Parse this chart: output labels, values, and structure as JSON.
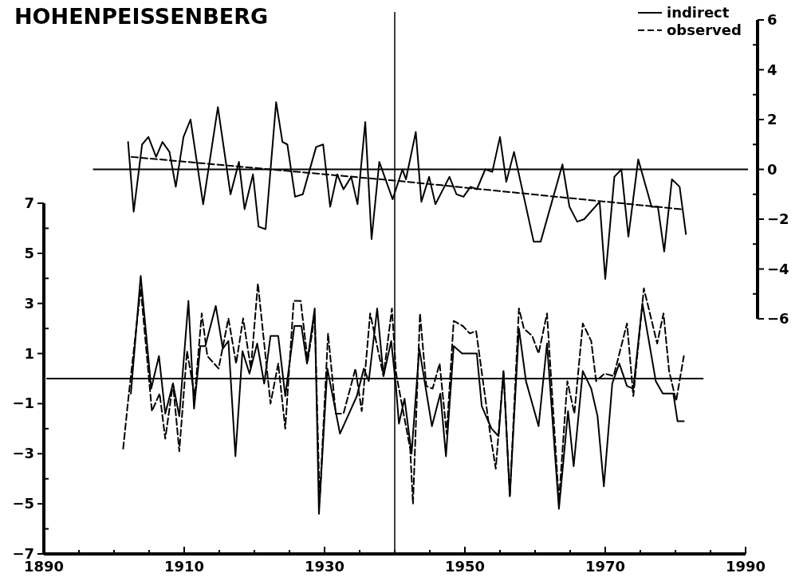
{
  "chart_data": {
    "type": "line",
    "title": "HOHENPEISSENBERG",
    "legend": "top right",
    "xlim": [
      1890,
      1990
    ],
    "xticks": [
      1890,
      {
        "value": 1895,
        "label": null
      },
      1910,
      {
        "value": 1900,
        "label": null
      },
      {
        "value": 1905,
        "label": null
      },
      {
        "value": 1915,
        "label": null
      },
      {
        "value": 1920,
        "label": null
      },
      {
        "value": 1925,
        "label": null
      },
      1930,
      {
        "value": 1935,
        "label": null
      },
      {
        "value": 1940,
        "label": null
      },
      {
        "value": 1945,
        "label": null
      },
      1950,
      {
        "value": 1955,
        "label": null
      },
      {
        "value": 1960,
        "label": null
      },
      {
        "value": 1965,
        "label": null
      },
      1970,
      {
        "value": 1975,
        "label": null
      },
      {
        "value": 1980,
        "label": null
      },
      {
        "value": 1985,
        "label": null
      },
      1990
    ],
    "ylim": [
      -7,
      7
    ],
    "yticks": [
      -7,
      {
        "value": -6,
        "label": null
      },
      -5,
      {
        "value": -4,
        "label": null
      },
      -3,
      {
        "value": -2,
        "label": null
      },
      -1,
      1,
      {
        "value": 2,
        "label": null
      },
      3,
      {
        "value": 4,
        "label": null
      },
      5,
      {
        "value": 6,
        "label": null
      },
      7
    ],
    "y2lim": [
      -6,
      6
    ],
    "y2ticks": [
      -6,
      {
        "value": -5,
        "label": null
      },
      -4,
      {
        "value": -3,
        "label": null
      },
      -2,
      {
        "value": -1,
        "label": null
      },
      0,
      {
        "value": 1,
        "label": null
      },
      2,
      {
        "value": 3,
        "label": null
      },
      4,
      {
        "value": 5,
        "label": null
      },
      6
    ],
    "ref_lines": [
      {
        "axis": "y",
        "value": 0
      },
      {
        "axis": "y2",
        "value": 0
      },
      {
        "axis": "x",
        "value": 1940
      }
    ],
    "series": [
      {
        "name": "indirect",
        "color": "#000000",
        "line_style": "solid",
        "x": [
          1902.4,
          1903.8,
          1905.3,
          1906.4,
          1907.3,
          1908.4,
          1909.3,
          1910.6,
          1911.4,
          1912.3,
          1913.0,
          1914.5,
          1915.5,
          1916.3,
          1917.3,
          1918.3,
          1919.3,
          1920.4,
          1921.4,
          1922.3,
          1923.4,
          1924.4,
          1925.7,
          1926.7,
          1927.5,
          1928.6,
          1929.2,
          1930.4,
          1932.2,
          1934.6,
          1935.6,
          1936.3,
          1937.5,
          1938.4,
          1939.5,
          1940.2,
          1940.6,
          1941.4,
          1942.4,
          1943.5,
          1945.3,
          1946.5,
          1947.3,
          1948.4,
          1949.6,
          1951.7,
          1952.4,
          1953.8,
          1954.8,
          1955.5,
          1956.4,
          1957.7,
          1958.7,
          1960.5,
          1961.7,
          1963.4,
          1964.7,
          1965.5,
          1966.8,
          1968.0,
          1968.9,
          1969.8,
          1971.0,
          1972.0,
          1973.1,
          1974.0,
          1975.3,
          1977.2,
          1978.2,
          1979.7,
          1980.3,
          1981.2
        ],
        "values": [
          -0.6,
          4.1,
          -0.4,
          0.9,
          -1.4,
          -0.2,
          -1.5,
          3.1,
          -1.2,
          1.3,
          1.3,
          2.9,
          1.2,
          1.5,
          -3.1,
          1.1,
          0.2,
          1.4,
          -0.2,
          1.7,
          1.7,
          -0.7,
          2.1,
          2.1,
          0.6,
          2.8,
          -5.4,
          0.4,
          -2.2,
          -0.7,
          0.4,
          -0.1,
          2.8,
          0.1,
          1.5,
          -0.4,
          -1.8,
          -0.8,
          -3.0,
          1.2,
          -1.9,
          -0.6,
          -3.1,
          1.3,
          1.0,
          1.0,
          -1.1,
          -2.0,
          -2.3,
          0.3,
          -4.7,
          2.0,
          -0.1,
          -1.9,
          1.4,
          -5.2,
          -1.3,
          -3.5,
          0.3,
          -0.4,
          -1.5,
          -4.3,
          -0.2,
          0.6,
          -0.3,
          -0.4,
          3.0,
          -0.1,
          -0.6,
          -0.6,
          -1.7,
          -1.7
        ]
      },
      {
        "name": "observed",
        "color": "#000000",
        "line_style": "dashed",
        "x": [
          1901.3,
          1902.0,
          1903.8,
          1905.4,
          1906.5,
          1907.3,
          1908.4,
          1909.3,
          1910.4,
          1911.5,
          1912.5,
          1913.3,
          1914.9,
          1916.3,
          1917.4,
          1918.4,
          1919.5,
          1920.5,
          1922.3,
          1923.4,
          1924.4,
          1925.6,
          1926.6,
          1927.6,
          1928.6,
          1929.3,
          1930.5,
          1931.6,
          1932.7,
          1934.4,
          1935.3,
          1936.5,
          1938.4,
          1939.6,
          1940.2,
          1942.2,
          1942.6,
          1943.6,
          1944.5,
          1945.4,
          1946.4,
          1947.4,
          1948.4,
          1949.7,
          1950.7,
          1951.6,
          1953.6,
          1954.4,
          1955.5,
          1956.4,
          1957.7,
          1958.4,
          1959.6,
          1960.5,
          1961.7,
          1963.4,
          1964.6,
          1965.6,
          1966.8,
          1968.0,
          1968.7,
          1969.9,
          1971.2,
          1973.1,
          1974.0,
          1975.5,
          1977.4,
          1978.3,
          1979.1,
          1980.1,
          1981.2
        ],
        "values": [
          -2.8,
          -0.9,
          3.6,
          -1.3,
          -0.6,
          -2.4,
          -0.2,
          -2.9,
          1.1,
          -0.7,
          2.6,
          0.9,
          0.4,
          2.4,
          0.6,
          2.4,
          0.4,
          3.8,
          -1.0,
          0.6,
          -2.0,
          3.1,
          3.1,
          0.7,
          2.5,
          -4.9,
          1.8,
          -1.4,
          -1.4,
          0.4,
          -1.3,
          2.6,
          0.1,
          2.8,
          0.2,
          -2.8,
          -5.0,
          2.6,
          -0.3,
          -0.4,
          0.6,
          -2.2,
          2.3,
          2.1,
          1.8,
          1.9,
          -2.2,
          -3.6,
          0.3,
          -4.7,
          2.8,
          2.0,
          1.7,
          1.0,
          2.6,
          -4.9,
          -0.1,
          -1.4,
          2.2,
          1.5,
          -0.1,
          0.2,
          0.1,
          2.2,
          -0.7,
          3.6,
          1.4,
          2.6,
          0.3,
          -0.9,
          0.9
        ]
      },
      {
        "axis": "y2",
        "color": "#000000",
        "line_style": "solid",
        "x": [
          1902.0,
          1902.8,
          1904.0,
          1904.9,
          1906.0,
          1906.9,
          1907.9,
          1908.8,
          1909.9,
          1910.9,
          1912.7,
          1914.8,
          1916.6,
          1917.8,
          1918.6,
          1919.8,
          1920.6,
          1921.6,
          1923.1,
          1924.0,
          1924.7,
          1925.8,
          1926.9,
          1928.8,
          1929.8,
          1930.8,
          1931.8,
          1932.7,
          1933.8,
          1934.7,
          1935.8,
          1936.7,
          1937.8,
          1939.7,
          1941.1,
          1941.6,
          1943.0,
          1943.8,
          1944.9,
          1945.8,
          1947.8,
          1948.8,
          1949.8,
          1950.8,
          1951.7,
          1952.9,
          1953.9,
          1955.0,
          1955.9,
          1957.0,
          1959.8,
          1960.8,
          1963.9,
          1964.9,
          1966.0,
          1967.0,
          1969.2,
          1970.0,
          1971.3,
          1972.3,
          1973.3,
          1974.7,
          1976.6,
          1977.5,
          1978.4,
          1979.5,
          1980.6,
          1981.5
        ],
        "values": [
          1.1,
          -1.7,
          1.0,
          1.3,
          0.5,
          1.1,
          0.7,
          -0.7,
          1.3,
          2.0,
          -1.4,
          2.5,
          -1.0,
          0.3,
          -1.6,
          -0.2,
          -2.3,
          -2.4,
          2.7,
          1.1,
          1.0,
          -1.1,
          -1.0,
          0.9,
          1.0,
          -1.5,
          -0.2,
          -0.8,
          -0.3,
          -1.4,
          1.9,
          -2.8,
          0.3,
          -1.2,
          0.0,
          -0.4,
          1.5,
          -1.3,
          -0.3,
          -1.4,
          -0.3,
          -1.0,
          -1.1,
          -0.7,
          -0.8,
          0.0,
          -0.1,
          1.3,
          -0.5,
          0.7,
          -2.9,
          -2.9,
          0.2,
          -1.5,
          -2.1,
          -2.0,
          -1.3,
          -4.4,
          -0.3,
          0.0,
          -2.7,
          0.4,
          -1.5,
          -1.5,
          -3.3,
          -0.4,
          -0.7,
          -2.6
        ]
      },
      {
        "axis": "y2",
        "color": "#000000",
        "line_style": "dashed",
        "x": [
          1902.5,
          1940.0,
          1980.8
        ],
        "values": [
          0.5,
          -0.45,
          -1.6
        ]
      }
    ]
  }
}
